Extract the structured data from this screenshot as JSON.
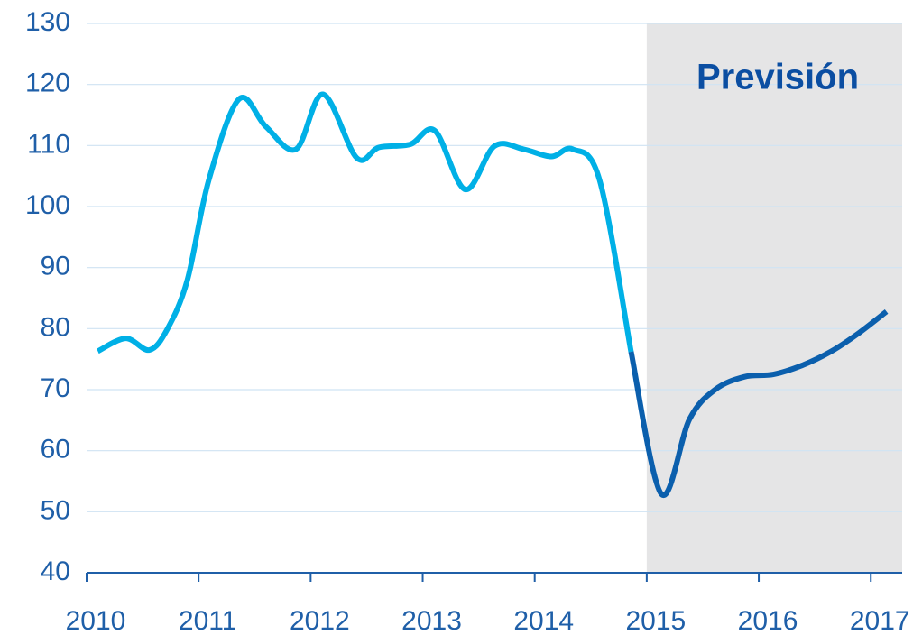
{
  "chart_data": {
    "type": "line",
    "x": [
      2010.1,
      2010.35,
      2010.56,
      2010.72,
      2010.9,
      2011.09,
      2011.36,
      2011.6,
      2011.87,
      2012.11,
      2012.41,
      2012.61,
      2012.89,
      2013.11,
      2013.38,
      2013.64,
      2013.9,
      2014.15,
      2014.34,
      2014.58,
      2014.86,
      2015.13,
      2015.38,
      2015.61,
      2015.87,
      2016.13,
      2016.39,
      2016.64,
      2016.88,
      2017.14
    ],
    "series": [
      {
        "color": "#00b0e6",
        "values": [
          76.3,
          78.4,
          76.5,
          79.9,
          88,
          104.3,
          117.6,
          113.1,
          109.4,
          118.4,
          108,
          109.7,
          110.2,
          112.4,
          102.8,
          109.9,
          109.4,
          108.2,
          109.4,
          104.3,
          76.2,
          null,
          null,
          null,
          null,
          null,
          null,
          null,
          null,
          null
        ]
      },
      {
        "color": "#0b5fad",
        "values": [
          null,
          null,
          null,
          null,
          null,
          null,
          null,
          null,
          null,
          null,
          null,
          null,
          null,
          null,
          null,
          null,
          null,
          null,
          null,
          null,
          76.2,
          52.9,
          65.1,
          70,
          72.1,
          72.5,
          74,
          76.2,
          79.1,
          82.8
        ]
      }
    ],
    "forecast": {
      "label": "Previsión",
      "xlim": [
        2015,
        2017.28
      ],
      "color": "#e5e5e6"
    },
    "xlim": [
      2010,
      2017.28
    ],
    "xticks": [
      2010,
      2011,
      2012,
      2013,
      2014,
      2015,
      2016,
      2017
    ],
    "ylim": [
      40,
      130
    ],
    "yticks": [
      40,
      50,
      60,
      70,
      80,
      90,
      100,
      110,
      120,
      130
    ],
    "grid": true
  }
}
